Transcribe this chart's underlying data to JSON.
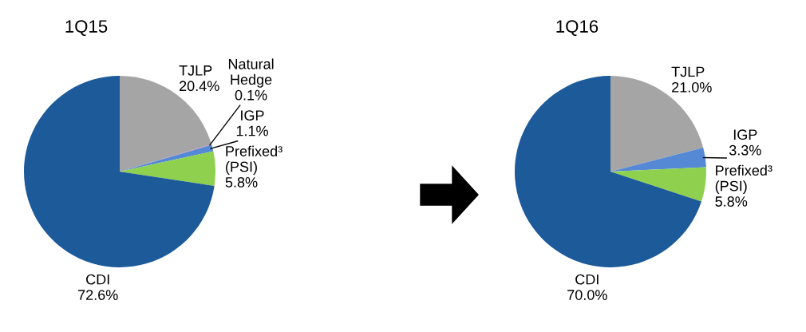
{
  "chart_data": [
    {
      "type": "pie",
      "title": "1Q15",
      "categories": [
        "TJLP",
        "Natural\nHedge",
        "IGP",
        "Prefixed³\n(PSI)",
        "CDI"
      ],
      "values": [
        20.4,
        0.1,
        1.1,
        5.8,
        72.6
      ],
      "value_labels": [
        "20.4%",
        "0.1%",
        "1.1%",
        "5.8%",
        "72.6%"
      ],
      "colors": [
        "#a5a5a5",
        "#c77fb0",
        "#5589d6",
        "#8fd14f",
        "#1c5a9a"
      ]
    },
    {
      "type": "pie",
      "title": "1Q16",
      "categories": [
        "TJLP",
        "IGP",
        "Prefixed³\n(PSI)",
        "CDI"
      ],
      "values": [
        21.0,
        3.3,
        5.8,
        70.0
      ],
      "value_labels": [
        "21.0%",
        "3.3%",
        "5.8%",
        "70.0%"
      ],
      "colors": [
        "#a5a5a5",
        "#5589d6",
        "#8fd14f",
        "#1c5a9a"
      ]
    }
  ]
}
